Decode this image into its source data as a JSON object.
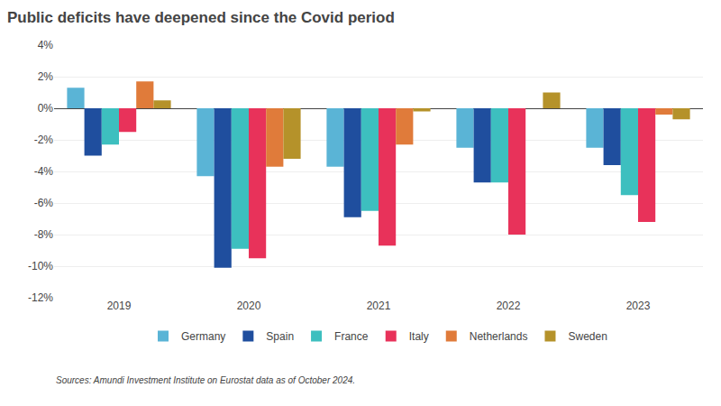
{
  "chart_data": {
    "type": "bar",
    "title": "Public deficits have deepened since the Covid period",
    "categories": [
      "2019",
      "2020",
      "2021",
      "2022",
      "2023"
    ],
    "series": [
      {
        "name": "Germany",
        "color": "#5ab4d6",
        "values": [
          1.3,
          -4.3,
          -3.7,
          -2.5,
          -2.5
        ]
      },
      {
        "name": "Spain",
        "color": "#1f4e9e",
        "values": [
          -3.0,
          -10.1,
          -6.9,
          -4.7,
          -3.6
        ]
      },
      {
        "name": "France",
        "color": "#3dbfbf",
        "values": [
          -2.3,
          -8.9,
          -6.5,
          -4.7,
          -5.5
        ]
      },
      {
        "name": "Italy",
        "color": "#e8325a",
        "values": [
          -1.5,
          -9.5,
          -8.7,
          -8.0,
          -7.2
        ]
      },
      {
        "name": "Netherlands",
        "color": "#e07b3a",
        "values": [
          1.7,
          -3.7,
          -2.3,
          0.0,
          -0.4
        ]
      },
      {
        "name": "Sweden",
        "color": "#b5922a",
        "values": [
          0.5,
          -3.2,
          -0.2,
          1.0,
          -0.7
        ]
      }
    ],
    "ylim": [
      -12,
      4
    ],
    "yticks": [
      {
        "value": -12,
        "label": "-12%"
      },
      {
        "value": -10,
        "label": "-10%"
      },
      {
        "value": -8,
        "label": "-8%"
      },
      {
        "value": -6,
        "label": "-6%"
      },
      {
        "value": -4,
        "label": "-4%"
      },
      {
        "value": -2,
        "label": "-2%"
      },
      {
        "value": 0,
        "label": "0%"
      },
      {
        "value": 2,
        "label": "2%"
      },
      {
        "value": 4,
        "label": "4%"
      }
    ],
    "grid": true,
    "legend": "bottom",
    "annotations": [
      "Sources: Amundi Investment Institute on Eurostat data as of October 2024."
    ]
  }
}
